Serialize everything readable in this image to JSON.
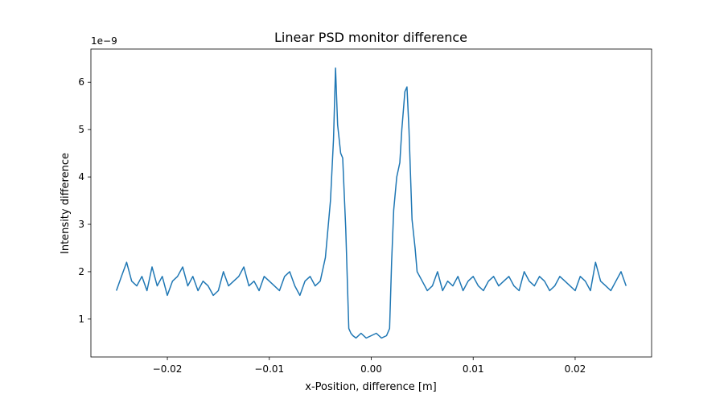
{
  "chart_data": {
    "type": "line",
    "title": "Linear PSD monitor difference",
    "xlabel": "x-Position, difference [m]",
    "ylabel": "Intensity difference",
    "y_offset_label": "1e−9",
    "xlim": [
      -0.0275,
      0.0275
    ],
    "ylim": [
      0.2,
      6.7
    ],
    "x_ticks": [
      {
        "value": -0.02,
        "label": "−0.02"
      },
      {
        "value": -0.01,
        "label": "−0.01"
      },
      {
        "value": 0.0,
        "label": "0.00"
      },
      {
        "value": 0.01,
        "label": "0.01"
      },
      {
        "value": 0.02,
        "label": "0.02"
      }
    ],
    "y_ticks": [
      {
        "value": 1,
        "label": "1"
      },
      {
        "value": 2,
        "label": "2"
      },
      {
        "value": 3,
        "label": "3"
      },
      {
        "value": 4,
        "label": "4"
      },
      {
        "value": 5,
        "label": "5"
      },
      {
        "value": 6,
        "label": "6"
      }
    ],
    "grid": false,
    "series": [
      {
        "color": "#1f77b4",
        "x": [
          -0.025,
          -0.0245,
          -0.024,
          -0.0235,
          -0.023,
          -0.0225,
          -0.022,
          -0.0215,
          -0.021,
          -0.0205,
          -0.02,
          -0.0195,
          -0.019,
          -0.0185,
          -0.018,
          -0.0175,
          -0.017,
          -0.0165,
          -0.016,
          -0.0155,
          -0.015,
          -0.0145,
          -0.014,
          -0.0135,
          -0.013,
          -0.0125,
          -0.012,
          -0.0115,
          -0.011,
          -0.0105,
          -0.01,
          -0.0095,
          -0.009,
          -0.0085,
          -0.008,
          -0.0075,
          -0.007,
          -0.0065,
          -0.006,
          -0.0055,
          -0.005,
          -0.0045,
          -0.004,
          -0.0037,
          -0.0035,
          -0.0033,
          -0.003,
          -0.0028,
          -0.0025,
          -0.0022,
          -0.002,
          -0.0018,
          -0.0015,
          -0.001,
          -0.0005,
          0.0,
          0.0005,
          0.001,
          0.0015,
          0.0018,
          0.002,
          0.0022,
          0.0025,
          0.0028,
          0.003,
          0.0033,
          0.0035,
          0.0037,
          0.004,
          0.0043,
          0.0045,
          0.005,
          0.0055,
          0.006,
          0.0065,
          0.007,
          0.0075,
          0.008,
          0.0085,
          0.009,
          0.0095,
          0.01,
          0.0105,
          0.011,
          0.0115,
          0.012,
          0.0125,
          0.013,
          0.0135,
          0.014,
          0.0145,
          0.015,
          0.0155,
          0.016,
          0.0165,
          0.017,
          0.0175,
          0.018,
          0.0185,
          0.019,
          0.0195,
          0.02,
          0.0205,
          0.021,
          0.0215,
          0.022,
          0.0225,
          0.023,
          0.0235,
          0.024,
          0.0245,
          0.025
        ],
        "y": [
          1.6,
          1.9,
          2.2,
          1.8,
          1.7,
          1.9,
          1.6,
          2.1,
          1.7,
          1.9,
          1.5,
          1.8,
          1.9,
          2.1,
          1.7,
          1.9,
          1.6,
          1.8,
          1.7,
          1.5,
          1.6,
          2.0,
          1.7,
          1.8,
          1.9,
          2.1,
          1.7,
          1.8,
          1.6,
          1.9,
          1.8,
          1.7,
          1.6,
          1.9,
          2.0,
          1.7,
          1.5,
          1.8,
          1.9,
          1.7,
          1.8,
          2.3,
          3.5,
          4.8,
          6.3,
          5.1,
          4.5,
          4.4,
          2.9,
          0.8,
          0.7,
          0.65,
          0.6,
          0.7,
          0.6,
          0.65,
          0.7,
          0.6,
          0.65,
          0.8,
          2.2,
          3.3,
          4.0,
          4.3,
          5.0,
          5.8,
          5.9,
          5.0,
          3.1,
          2.5,
          2.0,
          1.8,
          1.6,
          1.7,
          2.0,
          1.6,
          1.8,
          1.7,
          1.9,
          1.6,
          1.8,
          1.9,
          1.7,
          1.6,
          1.8,
          1.9,
          1.7,
          1.8,
          1.9,
          1.7,
          1.6,
          2.0,
          1.8,
          1.7,
          1.9,
          1.8,
          1.6,
          1.7,
          1.9,
          1.8,
          1.7,
          1.6,
          1.9,
          1.8,
          1.6,
          2.2,
          1.8,
          1.7,
          1.6,
          1.8,
          2.0,
          1.7
        ]
      }
    ]
  }
}
